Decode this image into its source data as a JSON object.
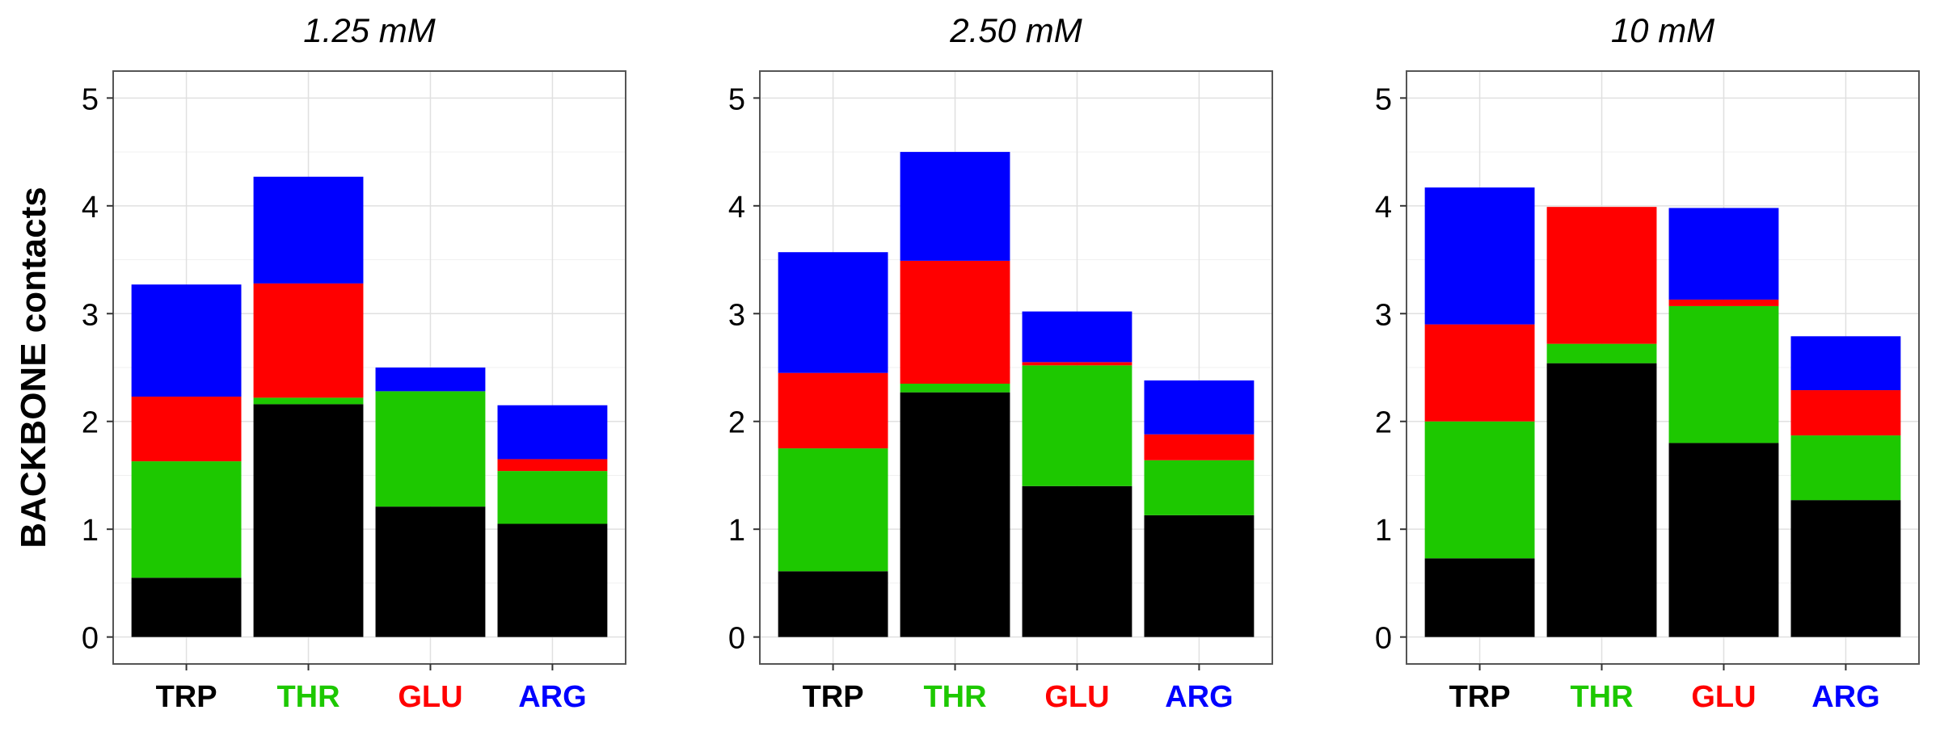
{
  "chart_data": {
    "type": "bar",
    "stacked": true,
    "ylabel": "BACKBONE contacts",
    "xlabel": "",
    "ylim": [
      -0.25,
      5.25
    ],
    "yticks": [
      0,
      1,
      2,
      3,
      4,
      5
    ],
    "grid": true,
    "legend": "none",
    "categories": [
      "TRP",
      "THR",
      "GLU",
      "ARG"
    ],
    "category_colors": [
      "#000000",
      "#1DC800",
      "#FF0000",
      "#0000FF"
    ],
    "stack_colors": [
      "#000000",
      "#1DC800",
      "#FF0000",
      "#0000FF"
    ],
    "panels": [
      {
        "title": "1.25 mM",
        "stacks": [
          [
            0.55,
            1.08,
            0.6,
            1.04
          ],
          [
            2.16,
            0.06,
            1.06,
            0.99
          ],
          [
            1.21,
            1.07,
            0.0,
            0.22
          ],
          [
            1.05,
            0.49,
            0.11,
            0.5
          ]
        ]
      },
      {
        "title": "2.50 mM",
        "stacks": [
          [
            0.61,
            1.14,
            0.7,
            1.12
          ],
          [
            2.27,
            0.08,
            1.14,
            1.01
          ],
          [
            1.4,
            1.12,
            0.03,
            0.47
          ],
          [
            1.13,
            0.51,
            0.24,
            0.5
          ]
        ]
      },
      {
        "title": "10 mM",
        "stacks": [
          [
            0.73,
            1.27,
            0.9,
            1.27
          ],
          [
            2.54,
            0.18,
            1.27,
            0.0
          ],
          [
            1.8,
            1.27,
            0.06,
            0.85
          ],
          [
            1.27,
            0.6,
            0.42,
            0.5
          ]
        ]
      }
    ]
  }
}
